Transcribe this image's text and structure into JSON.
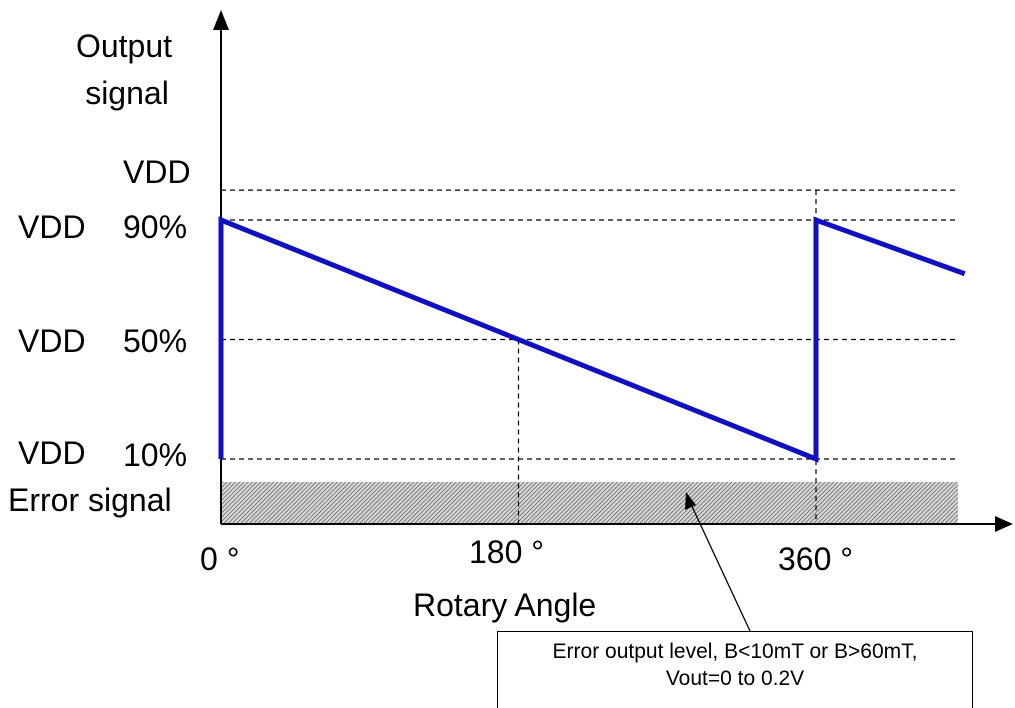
{
  "chart_data": {
    "type": "line",
    "ylabel": [
      "Output",
      "signal"
    ],
    "xlabel": "Rotary Angle",
    "x_ticks": [
      {
        "value": 0,
        "label": "0 °"
      },
      {
        "value": 180,
        "label": "180 °"
      },
      {
        "value": 360,
        "label": "360 °"
      }
    ],
    "y_levels": [
      {
        "value": 100,
        "label": "VDD",
        "prefix": ""
      },
      {
        "value": 90,
        "label": "90%",
        "prefix": "VDD"
      },
      {
        "value": 50,
        "label": "50%",
        "prefix": "VDD"
      },
      {
        "value": 10,
        "label": "10%",
        "prefix": "VDD"
      }
    ],
    "error_band": {
      "label": "Error signal",
      "range": [
        0,
        4
      ]
    },
    "series": [
      {
        "color": "#1010c0",
        "points": [
          [
            0,
            10
          ],
          [
            0,
            90
          ],
          [
            360,
            10
          ],
          [
            360,
            90
          ],
          [
            450,
            72
          ]
        ]
      }
    ],
    "guides": [
      {
        "x": 180,
        "y": 50
      },
      {
        "x": 360,
        "y": 100
      }
    ],
    "annotation": {
      "lines": [
        "Error output level, B<10mT or B>60mT,",
        "Vout=0 to 0.2V"
      ]
    },
    "xlim": [
      0,
      450
    ],
    "ylim": [
      0,
      100
    ],
    "grid": "dashed horizontal at VDD levels"
  }
}
